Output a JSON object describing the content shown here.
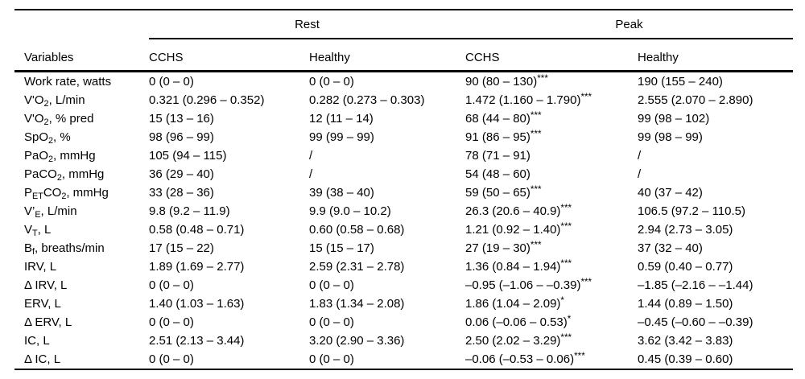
{
  "table": {
    "group_headers": [
      {
        "label": "Rest"
      },
      {
        "label": "Peak"
      }
    ],
    "variables_header": "Variables",
    "col_headers": [
      "CCHS",
      "Healthy",
      "CCHS",
      "Healthy"
    ],
    "rows": [
      {
        "label": [
          {
            "t": "Work rate, watts"
          }
        ],
        "cells": [
          {
            "v": "0 (0 – 0)"
          },
          {
            "v": "0 (0 – 0)"
          },
          {
            "v": "90 (80 – 130)",
            "sup": "***"
          },
          {
            "v": "190 (155 – 240)"
          }
        ]
      },
      {
        "label": [
          {
            "t": "V'O"
          },
          {
            "t": "2",
            "sub": true
          },
          {
            "t": ", L/min"
          }
        ],
        "cells": [
          {
            "v": "0.321 (0.296 – 0.352)"
          },
          {
            "v": "0.282 (0.273 – 0.303)"
          },
          {
            "v": "1.472 (1.160 – 1.790)",
            "sup": "***"
          },
          {
            "v": "2.555 (2.070 – 2.890)"
          }
        ]
      },
      {
        "label": [
          {
            "t": "V'O"
          },
          {
            "t": "2",
            "sub": true
          },
          {
            "t": ", % pred"
          }
        ],
        "cells": [
          {
            "v": "15 (13 – 16)"
          },
          {
            "v": "12 (11 – 14)"
          },
          {
            "v": "68 (44 – 80)",
            "sup": "***"
          },
          {
            "v": "99 (98 – 102)"
          }
        ]
      },
      {
        "label": [
          {
            "t": "SpO"
          },
          {
            "t": "2",
            "sub": true
          },
          {
            "t": ", %"
          }
        ],
        "cells": [
          {
            "v": "98 (96 – 99)"
          },
          {
            "v": "99 (99 – 99)"
          },
          {
            "v": "91 (86 – 95)",
            "sup": "***"
          },
          {
            "v": "99 (98 – 99)"
          }
        ]
      },
      {
        "label": [
          {
            "t": "PaO"
          },
          {
            "t": "2",
            "sub": true
          },
          {
            "t": ", mmHg"
          }
        ],
        "cells": [
          {
            "v": "105 (94 – 115)"
          },
          {
            "v": "/"
          },
          {
            "v": "78 (71 – 91)"
          },
          {
            "v": "/"
          }
        ]
      },
      {
        "label": [
          {
            "t": "PaCO"
          },
          {
            "t": "2",
            "sub": true
          },
          {
            "t": ", mmHg"
          }
        ],
        "cells": [
          {
            "v": "36 (29 – 40)"
          },
          {
            "v": "/"
          },
          {
            "v": "54 (48 – 60)"
          },
          {
            "v": "/"
          }
        ]
      },
      {
        "label": [
          {
            "t": "P"
          },
          {
            "t": "ET",
            "sub": true
          },
          {
            "t": "CO"
          },
          {
            "t": "2",
            "sub": true
          },
          {
            "t": ", mmHg"
          }
        ],
        "cells": [
          {
            "v": "33 (28 – 36)"
          },
          {
            "v": "39 (38 – 40)"
          },
          {
            "v": "59 (50 – 65)",
            "sup": "***"
          },
          {
            "v": "40 (37 – 42)"
          }
        ]
      },
      {
        "label": [
          {
            "t": "V’"
          },
          {
            "t": "E",
            "sub": true
          },
          {
            "t": ", L/min"
          }
        ],
        "cells": [
          {
            "v": "9.8 (9.2 – 11.9)"
          },
          {
            "v": "9.9 (9.0 – 10.2)"
          },
          {
            "v": "26.3 (20.6 – 40.9)",
            "sup": "***"
          },
          {
            "v": "106.5 (97.2 – 110.5)"
          }
        ]
      },
      {
        "label": [
          {
            "t": "V"
          },
          {
            "t": "T",
            "sub": true
          },
          {
            "t": ", L"
          }
        ],
        "cells": [
          {
            "v": "0.58 (0.48 – 0.71)"
          },
          {
            "v": "0.60 (0.58 – 0.68)"
          },
          {
            "v": "1.21 (0.92 – 1.40)",
            "sup": "***"
          },
          {
            "v": "2.94 (2.73 – 3.05)"
          }
        ]
      },
      {
        "label": [
          {
            "t": "B"
          },
          {
            "t": "f",
            "sub": true
          },
          {
            "t": ", breaths/min"
          }
        ],
        "cells": [
          {
            "v": "17 (15 – 22)"
          },
          {
            "v": "15 (15 – 17)"
          },
          {
            "v": "27 (19 – 30)",
            "sup": "***"
          },
          {
            "v": "37 (32 – 40)"
          }
        ]
      },
      {
        "label": [
          {
            "t": "IRV, L"
          }
        ],
        "cells": [
          {
            "v": "1.89 (1.69 – 2.77)"
          },
          {
            "v": "2.59 (2.31 – 2.78)"
          },
          {
            "v": "1.36 (0.84 – 1.94)",
            "sup": "***"
          },
          {
            "v": "0.59 (0.40 – 0.77)"
          }
        ]
      },
      {
        "label": [
          {
            "t": "Δ IRV, L"
          }
        ],
        "cells": [
          {
            "v": "0 (0 – 0)"
          },
          {
            "v": "0 (0 – 0)"
          },
          {
            "v": "–0.95 (–1.06 – –0.39)",
            "sup": "***"
          },
          {
            "v": "–1.85 (–2.16 – –1.44)"
          }
        ]
      },
      {
        "label": [
          {
            "t": "ERV, L"
          }
        ],
        "cells": [
          {
            "v": "1.40 (1.03 – 1.63)"
          },
          {
            "v": "1.83 (1.34 – 2.08)"
          },
          {
            "v": "1.86 (1.04 – 2.09)",
            "sup": "*"
          },
          {
            "v": "1.44 (0.89 – 1.50)"
          }
        ]
      },
      {
        "label": [
          {
            "t": "Δ ERV, L"
          }
        ],
        "cells": [
          {
            "v": "0 (0 – 0)"
          },
          {
            "v": "0 (0 – 0)"
          },
          {
            "v": "0.06 (–0.06 – 0.53)",
            "sup": "*"
          },
          {
            "v": "–0.45 (–0.60 – –0.39)"
          }
        ]
      },
      {
        "label": [
          {
            "t": "IC, L"
          }
        ],
        "cells": [
          {
            "v": "2.51 (2.13 – 3.44)"
          },
          {
            "v": "3.20 (2.90 – 3.36)"
          },
          {
            "v": "2.50 (2.02 – 3.29)",
            "sup": "***"
          },
          {
            "v": "3.62 (3.42 – 3.83)"
          }
        ]
      },
      {
        "label": [
          {
            "t": "Δ IC, L"
          }
        ],
        "cells": [
          {
            "v": "0 (0 – 0)"
          },
          {
            "v": "0 (0 – 0)"
          },
          {
            "v": "–0.06 (–0.53 – 0.06)",
            "sup": "***"
          },
          {
            "v": "0.45 (0.39 – 0.60)"
          }
        ]
      }
    ]
  }
}
